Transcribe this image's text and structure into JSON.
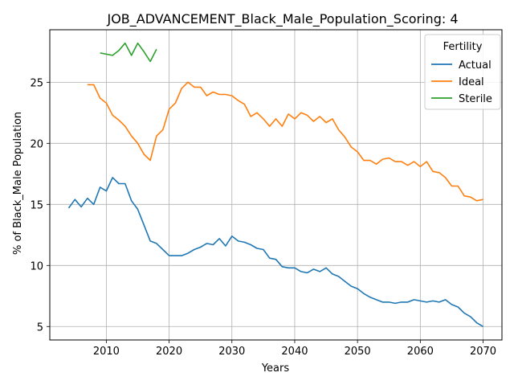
{
  "chart_data": {
    "type": "line",
    "title": "JOB_ADVANCEMENT_Black_Male_Population_Scoring: 4",
    "xlabel": "Years",
    "ylabel": "% of Black_Male Population",
    "xlim": [
      2001,
      2073
    ],
    "ylim": [
      3.9,
      29.3
    ],
    "xticks": [
      2010,
      2020,
      2030,
      2040,
      2050,
      2060,
      2070
    ],
    "yticks": [
      5,
      10,
      15,
      20,
      25
    ],
    "grid": true,
    "legend": {
      "title": "Fertility",
      "placement": "top-right"
    },
    "series": [
      {
        "name": "Actual",
        "color": "#1f77b4",
        "x": [
          2004,
          2005,
          2006,
          2007,
          2008,
          2009,
          2010,
          2011,
          2012,
          2013,
          2014,
          2015,
          2016,
          2017,
          2018,
          2019,
          2020,
          2021,
          2022,
          2023,
          2024,
          2025,
          2026,
          2027,
          2028,
          2029,
          2030,
          2031,
          2032,
          2033,
          2034,
          2035,
          2036,
          2037,
          2038,
          2039,
          2040,
          2041,
          2042,
          2043,
          2044,
          2045,
          2046,
          2047,
          2048,
          2049,
          2050,
          2051,
          2052,
          2053,
          2054,
          2055,
          2056,
          2057,
          2058,
          2059,
          2060,
          2061,
          2062,
          2063,
          2064,
          2065,
          2066,
          2067,
          2068,
          2069,
          2070
        ],
        "y": [
          14.7,
          15.4,
          14.8,
          15.5,
          15.0,
          16.4,
          16.1,
          17.2,
          16.7,
          16.7,
          15.3,
          14.6,
          13.3,
          12.0,
          11.8,
          11.3,
          10.8,
          10.8,
          10.8,
          11.0,
          11.3,
          11.5,
          11.8,
          11.7,
          12.2,
          11.6,
          12.4,
          12.0,
          11.9,
          11.7,
          11.4,
          11.3,
          10.6,
          10.5,
          9.9,
          9.8,
          9.8,
          9.5,
          9.4,
          9.7,
          9.5,
          9.8,
          9.3,
          9.1,
          8.7,
          8.3,
          8.1,
          7.7,
          7.4,
          7.2,
          7.0,
          7.0,
          6.9,
          7.0,
          7.0,
          7.2,
          7.1,
          7.0,
          7.1,
          7.0,
          7.2,
          6.8,
          6.6,
          6.1,
          5.8,
          5.3,
          5.0
        ]
      },
      {
        "name": "Ideal",
        "color": "#ff7f0e",
        "x": [
          2007,
          2008,
          2009,
          2010,
          2011,
          2012,
          2013,
          2014,
          2015,
          2016,
          2017,
          2018,
          2019,
          2020,
          2021,
          2022,
          2023,
          2024,
          2025,
          2026,
          2027,
          2028,
          2029,
          2030,
          2031,
          2032,
          2033,
          2034,
          2035,
          2036,
          2037,
          2038,
          2039,
          2040,
          2041,
          2042,
          2043,
          2044,
          2045,
          2046,
          2047,
          2048,
          2049,
          2050,
          2051,
          2052,
          2053,
          2054,
          2055,
          2056,
          2057,
          2058,
          2059,
          2060,
          2061,
          2062,
          2063,
          2064,
          2065,
          2066,
          2067,
          2068,
          2069,
          2070
        ],
        "y": [
          24.8,
          24.8,
          23.7,
          23.3,
          22.3,
          21.9,
          21.4,
          20.6,
          20.0,
          19.1,
          18.6,
          20.6,
          21.1,
          22.8,
          23.3,
          24.5,
          25.0,
          24.6,
          24.6,
          23.9,
          24.2,
          24.0,
          24.0,
          23.9,
          23.5,
          23.2,
          22.2,
          22.5,
          22.0,
          21.4,
          22.0,
          21.4,
          22.4,
          22.0,
          22.5,
          22.3,
          21.8,
          22.2,
          21.7,
          22.0,
          21.1,
          20.5,
          19.7,
          19.3,
          18.6,
          18.6,
          18.3,
          18.7,
          18.8,
          18.5,
          18.5,
          18.2,
          18.5,
          18.1,
          18.5,
          17.7,
          17.6,
          17.2,
          16.5,
          16.5,
          15.7,
          15.6,
          15.3,
          15.4
        ]
      },
      {
        "name": "Sterile",
        "color": "#2ca02c",
        "x": [
          2009,
          2010,
          2011,
          2012,
          2013,
          2014,
          2015,
          2016,
          2017,
          2018
        ],
        "y": [
          27.4,
          27.3,
          27.2,
          27.6,
          28.2,
          27.2,
          28.2,
          27.5,
          26.7,
          27.7
        ]
      }
    ]
  }
}
